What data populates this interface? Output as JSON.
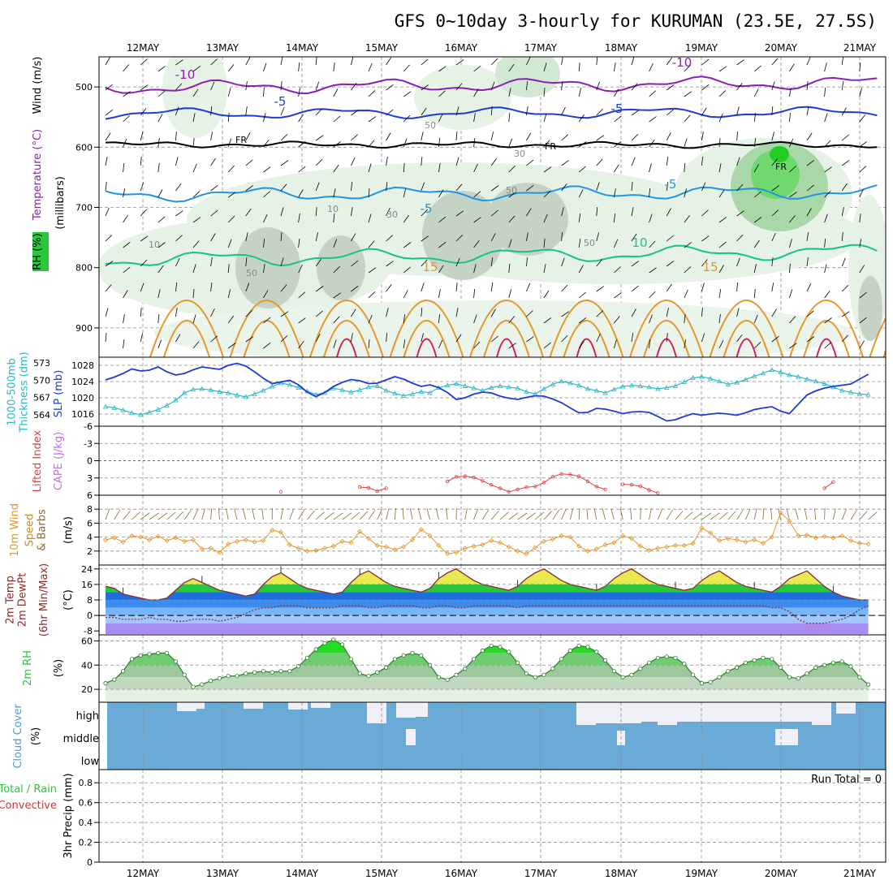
{
  "title": "GFS 0~10day 3-hourly for KURUMAN (23.5E, 27.5S)",
  "dates": [
    "12MAY",
    "13MAY",
    "14MAY",
    "15MAY",
    "16MAY",
    "17MAY",
    "18MAY",
    "19MAY",
    "20MAY",
    "21MAY"
  ],
  "run_total": "Run Total = 0",
  "colors": {
    "purple": "#8c1eb4",
    "blue": "#1e3cd2",
    "lightblue": "#1e96e6",
    "teal": "#14c38c",
    "orange": "#e69628",
    "red": "#d21e64",
    "black": "#000000",
    "green": "#28c83c",
    "cloud": "#6aaad6"
  },
  "panels": {
    "upper": {
      "left_labels": [
        "Wind (m/s)",
        "Temperature (°C)",
        "RH (%)",
        "(millibars)"
      ],
      "y_ticks": [
        "500",
        "600",
        "700",
        "800",
        "900"
      ],
      "contour_labels": [
        "-10",
        "-10",
        "-5",
        "-5",
        "FR",
        "FR",
        "FR",
        "-5",
        "-5",
        "10",
        "15",
        "15",
        "50",
        "30",
        "50",
        "10",
        "10",
        "30",
        "50",
        "50"
      ]
    },
    "slp": {
      "left_labels": [
        "1000-500mb",
        "Thickness (dm)",
        "SLP (mb)"
      ],
      "thickness_ticks": [
        "573",
        "570",
        "567",
        "564"
      ],
      "slp_ticks": [
        "1028",
        "1024",
        "1020",
        "1016"
      ]
    },
    "li": {
      "left_labels": [
        "Lifted Index",
        "CAPE (J/kg)"
      ],
      "y_ticks": [
        "-6",
        "-3",
        "0",
        "3",
        "6"
      ]
    },
    "wind": {
      "left_labels": [
        "10m Wind",
        "Speed",
        "& Barbs",
        "(m/s)"
      ],
      "y_ticks": [
        "8",
        "6",
        "4",
        "2"
      ]
    },
    "temp": {
      "left_labels": [
        "2m Temp",
        "2m DewPt",
        "(6hr Min/Max)",
        "(°C)"
      ],
      "y_ticks": [
        "24",
        "16",
        "8",
        "0",
        "-8"
      ]
    },
    "rh": {
      "left_labels": [
        "2m RH",
        "(%)"
      ],
      "y_ticks": [
        "60",
        "40",
        "20"
      ]
    },
    "cloud": {
      "left_labels": [
        "Cloud Cover",
        "(%)"
      ],
      "levels": [
        "high",
        "middle",
        "low"
      ]
    },
    "precip": {
      "left_labels": [
        "Total / Rain",
        "Convective",
        "3hr Precip (mm)"
      ],
      "y_ticks": [
        "0.8",
        "0.6",
        "0.4",
        "0.2",
        "0"
      ]
    }
  },
  "chart_data": [
    {
      "type": "line",
      "title": "1000-500mb Thickness (dm)",
      "ylim": [
        562,
        574
      ],
      "values": [
        565.4,
        565.2,
        564.8,
        564.3,
        564.0,
        564.4,
        564.9,
        565.6,
        566.5,
        567.8,
        568.4,
        568.5,
        568.3,
        568.0,
        567.8,
        567.4,
        567.1,
        567.6,
        568.2,
        568.9,
        569.5,
        569.2,
        568.7,
        568.1,
        567.5,
        567.8,
        568.6,
        568.3,
        567.9,
        568.3,
        568.8,
        569.0,
        568.2,
        567.7,
        567.3,
        567.6,
        568.0,
        567.8,
        568.7,
        569.1,
        569.4,
        569.0,
        568.6,
        568.2,
        568.7,
        569.0,
        568.8,
        568.6,
        568.0,
        567.6,
        568.5,
        569.3,
        569.8,
        569.5,
        569.1,
        568.5,
        568.2,
        567.8,
        568.4,
        568.9,
        569.1,
        569.0,
        568.8,
        568.5,
        568.7,
        569.0,
        569.7,
        570.4,
        570.6,
        570.3,
        569.8,
        569.3,
        569.6,
        570.1,
        570.7,
        571.2,
        571.8,
        571.4,
        570.9,
        570.6,
        570.2,
        569.8,
        569.4,
        568.8,
        568.2,
        567.9,
        567.6,
        567.5
      ]
    },
    {
      "type": "line",
      "title": "SLP (mb)",
      "ylim": [
        1013,
        1030
      ],
      "values": [
        1024.4,
        1025.1,
        1026.0,
        1027.1,
        1026.6,
        1026.8,
        1027.6,
        1026.4,
        1025.6,
        1026.0,
        1026.9,
        1027.6,
        1027.3,
        1027.0,
        1028.0,
        1028.5,
        1027.8,
        1026.4,
        1024.8,
        1023.5,
        1023.9,
        1024.3,
        1023.2,
        1021.4,
        1020.3,
        1021.3,
        1022.8,
        1023.8,
        1024.5,
        1024.2,
        1023.5,
        1023.6,
        1024.4,
        1025.2,
        1024.6,
        1023.6,
        1022.8,
        1023.2,
        1022.5,
        1021.3,
        1019.6,
        1020.0,
        1020.9,
        1021.4,
        1021.2,
        1020.4,
        1019.9,
        1019.6,
        1020.1,
        1020.5,
        1020.4,
        1019.7,
        1018.8,
        1017.5,
        1016.3,
        1016.4,
        1017.4,
        1017.2,
        1016.7,
        1016.1,
        1016.5,
        1016.6,
        1016.4,
        1015.4,
        1014.3,
        1014.6,
        1015.4,
        1016.1,
        1015.7,
        1016.0,
        1016.2,
        1016.0,
        1015.7,
        1016.3,
        1017.1,
        1017.5,
        1017.8,
        1016.7,
        1016.1,
        1018.4,
        1020.7,
        1021.7,
        1022.4,
        1022.8,
        1023.1,
        1023.4,
        1024.6,
        1025.8
      ]
    },
    {
      "type": "line",
      "title": "Lifted Index",
      "ylim": [
        -6,
        6
      ],
      "values": [
        null,
        null,
        null,
        null,
        null,
        null,
        null,
        null,
        null,
        null,
        null,
        null,
        null,
        null,
        null,
        null,
        null,
        null,
        null,
        null,
        5.4,
        null,
        null,
        null,
        null,
        null,
        null,
        null,
        null,
        4.6,
        4.7,
        5.3,
        4.8,
        null,
        null,
        null,
        null,
        null,
        null,
        3.6,
        2.8,
        2.7,
        2.9,
        3.5,
        4.2,
        4.8,
        5.4,
        5.0,
        4.6,
        4.5,
        3.8,
        2.8,
        2.3,
        2.4,
        2.7,
        3.6,
        4.5,
        5.0,
        null,
        4.1,
        4.2,
        4.4,
        5.1,
        5.6,
        null,
        null,
        null,
        null,
        null,
        null,
        null,
        null,
        null,
        null,
        null,
        null,
        null,
        null,
        null,
        null,
        null,
        null,
        4.8,
        3.7,
        null,
        null,
        null,
        null
      ]
    },
    {
      "type": "line",
      "title": "10m Wind Speed (m/s)",
      "ylim": [
        0,
        10
      ],
      "values": [
        3.6,
        3.9,
        3.3,
        4.2,
        4.0,
        3.6,
        4.1,
        3.5,
        3.9,
        3.4,
        3.6,
        2.3,
        2.4,
        1.8,
        3.0,
        3.4,
        3.6,
        3.3,
        3.5,
        5.0,
        4.7,
        2.9,
        2.4,
        2.0,
        2.1,
        2.4,
        2.7,
        3.4,
        3.2,
        4.8,
        3.8,
        2.8,
        2.6,
        2.2,
        2.6,
        3.6,
        5.1,
        4.2,
        2.8,
        1.6,
        1.8,
        2.4,
        2.7,
        2.9,
        3.5,
        3.2,
        2.6,
        2.0,
        1.6,
        2.5,
        3.4,
        3.7,
        4.2,
        4.0,
        2.7,
        2.0,
        2.3,
        2.9,
        3.2,
        4.2,
        3.8,
        2.7,
        2.1,
        2.4,
        2.6,
        2.8,
        2.8,
        3.1,
        5.3,
        4.6,
        3.5,
        3.8,
        3.6,
        3.3,
        3.6,
        3.1,
        4.0,
        7.5,
        6.3,
        4.2,
        4.3,
        3.9,
        4.1,
        3.9,
        4.2,
        3.5,
        3.1,
        3.0
      ]
    },
    {
      "type": "area",
      "title": "2m Temp (°C)",
      "ylim": [
        -10,
        26
      ],
      "values": [
        15,
        14,
        11,
        10,
        9,
        8,
        8,
        9,
        13,
        17,
        19,
        17,
        15,
        13,
        12,
        11,
        10,
        11,
        16,
        20,
        22,
        19,
        16,
        14,
        13,
        12,
        11,
        12,
        17,
        21,
        23,
        20,
        17,
        15,
        14,
        13,
        12,
        14,
        19,
        22,
        24,
        21,
        18,
        16,
        15,
        14,
        13,
        15,
        19,
        22,
        24,
        21,
        18,
        16,
        15,
        14,
        13,
        15,
        19,
        22,
        24,
        21,
        18,
        16,
        15,
        14,
        13,
        14,
        18,
        21,
        23,
        20,
        17,
        15,
        14,
        13,
        12,
        15,
        19,
        21,
        23,
        19,
        15,
        12,
        10,
        9,
        8,
        8
      ]
    },
    {
      "type": "line",
      "title": "2m DewPt (°C)",
      "ylim": [
        -10,
        26
      ],
      "values": [
        -1,
        -1,
        -2,
        -2,
        -2,
        -1,
        -2,
        -2,
        -3,
        -3,
        -2,
        -2,
        -2,
        -3,
        -2,
        -1,
        1,
        3,
        4,
        4,
        5,
        5,
        5,
        4,
        4,
        4,
        4,
        5,
        5,
        5,
        4,
        4,
        5,
        5,
        5,
        5,
        4,
        4,
        5,
        5,
        4,
        4,
        5,
        5,
        5,
        5,
        5,
        4,
        5,
        5,
        5,
        5,
        5,
        5,
        5,
        5,
        5,
        5,
        5,
        5,
        5,
        5,
        5,
        5,
        5,
        5,
        5,
        5,
        5,
        5,
        5,
        5,
        5,
        5,
        5,
        5,
        4,
        4,
        2,
        -2,
        -4,
        -4,
        -4,
        -3,
        -2,
        0,
        3,
        5
      ]
    },
    {
      "type": "area",
      "title": "2m RH (%)",
      "ylim": [
        10,
        65
      ],
      "values": [
        25,
        28,
        35,
        45,
        48,
        49,
        50,
        50,
        43,
        32,
        22,
        24,
        27,
        29,
        31,
        31,
        33,
        34,
        35,
        34,
        35,
        35,
        39,
        46,
        53,
        58,
        61,
        57,
        45,
        33,
        31,
        34,
        38,
        45,
        48,
        50,
        48,
        40,
        30,
        28,
        32,
        37,
        45,
        52,
        56,
        55,
        51,
        42,
        33,
        30,
        32,
        37,
        45,
        52,
        56,
        55,
        51,
        44,
        35,
        30,
        32,
        37,
        42,
        46,
        47,
        46,
        41,
        32,
        25,
        26,
        30,
        35,
        38,
        42,
        44,
        46,
        45,
        38,
        30,
        29,
        33,
        38,
        40,
        42,
        43,
        39,
        30,
        24
      ]
    },
    {
      "type": "bar",
      "title": "3hr Precip (mm)",
      "ylim": [
        0,
        0.9
      ],
      "values": [
        0,
        0,
        0,
        0,
        0,
        0,
        0,
        0,
        0,
        0
      ]
    }
  ]
}
